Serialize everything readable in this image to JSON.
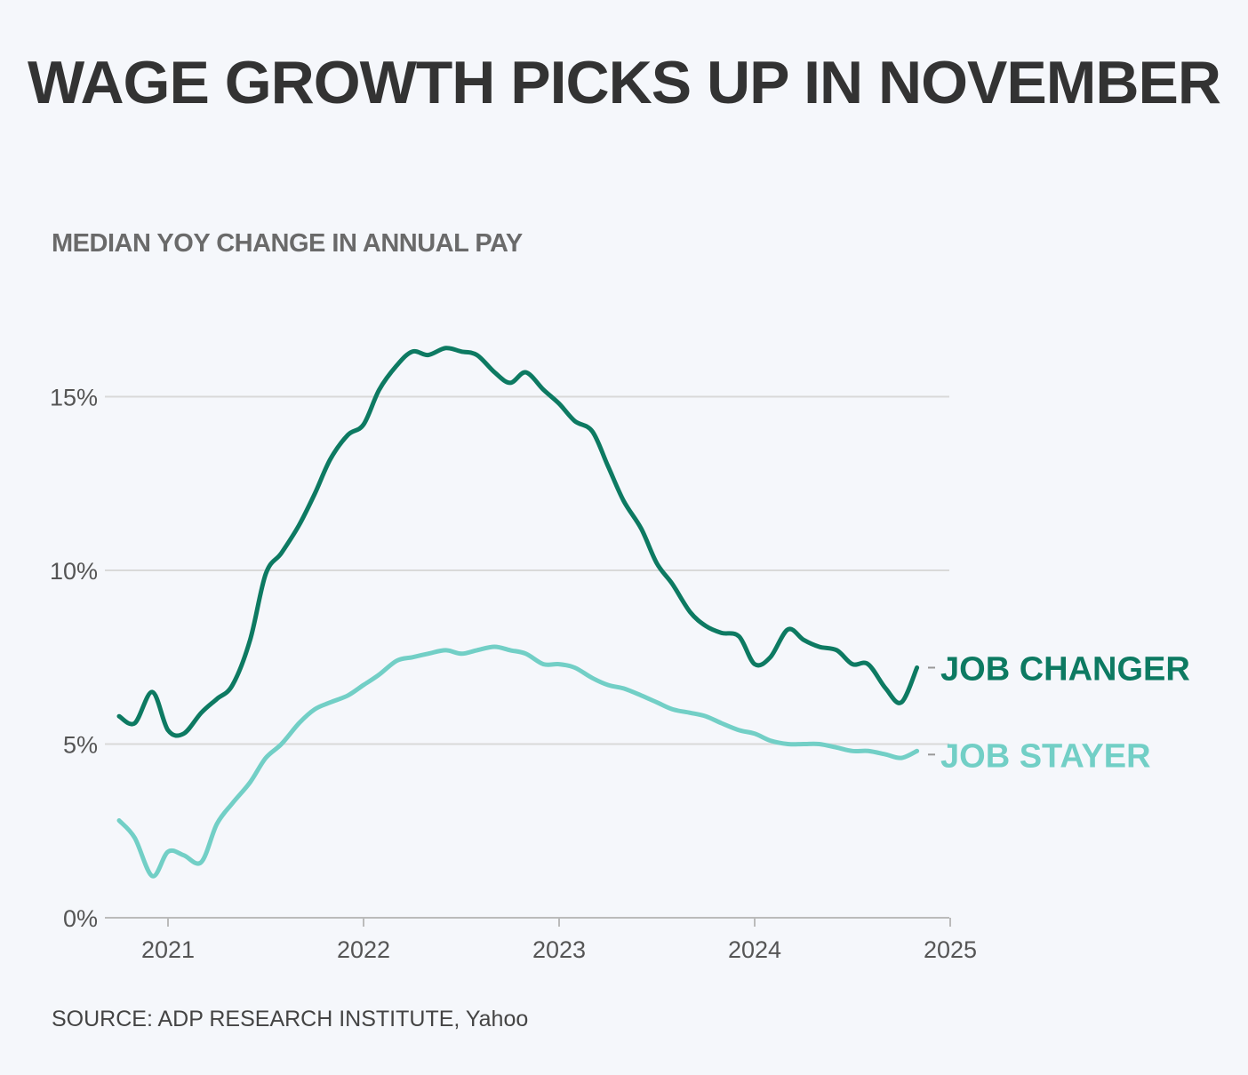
{
  "title": "WAGE GROWTH PICKS UP IN NOVEMBER",
  "subtitle": "MEDIAN YOY CHANGE IN ANNUAL PAY",
  "source": "SOURCE: ADP RESEARCH INSTITUTE, Yahoo",
  "colors": {
    "job_changer": "#0d7a62",
    "job_stayer": "#72cfc6",
    "grid": "#d9d9d9",
    "axis": "#bbbbbb"
  },
  "chart_data": {
    "type": "line",
    "title": "WAGE GROWTH PICKS UP IN NOVEMBER",
    "subtitle": "MEDIAN YOY CHANGE IN ANNUAL PAY",
    "xlim": [
      2020.75,
      2025.0
    ],
    "ylim": [
      0,
      17
    ],
    "x_ticks": [
      2021,
      2022,
      2023,
      2024,
      2025
    ],
    "x_tick_labels": [
      "2021",
      "2022",
      "2023",
      "2024",
      "2025"
    ],
    "y_ticks": [
      0,
      5,
      10,
      15
    ],
    "y_tick_labels": [
      "0%",
      "5%",
      "10%",
      "15%"
    ],
    "grid": true,
    "legend": "direct labels at line ends",
    "series": [
      {
        "name": "JOB CHANGER",
        "color": "#0d7a62",
        "points": [
          [
            2020.75,
            5.8
          ],
          [
            2020.83,
            5.6
          ],
          [
            2020.92,
            6.5
          ],
          [
            2021.0,
            5.4
          ],
          [
            2021.08,
            5.3
          ],
          [
            2021.17,
            5.9
          ],
          [
            2021.25,
            6.3
          ],
          [
            2021.33,
            6.7
          ],
          [
            2021.42,
            8.0
          ],
          [
            2021.5,
            9.9
          ],
          [
            2021.58,
            10.5
          ],
          [
            2021.67,
            11.3
          ],
          [
            2021.75,
            12.2
          ],
          [
            2021.83,
            13.2
          ],
          [
            2021.92,
            13.9
          ],
          [
            2022.0,
            14.2
          ],
          [
            2022.08,
            15.2
          ],
          [
            2022.17,
            15.9
          ],
          [
            2022.25,
            16.3
          ],
          [
            2022.33,
            16.2
          ],
          [
            2022.42,
            16.4
          ],
          [
            2022.5,
            16.3
          ],
          [
            2022.58,
            16.2
          ],
          [
            2022.67,
            15.7
          ],
          [
            2022.75,
            15.4
          ],
          [
            2022.83,
            15.7
          ],
          [
            2022.92,
            15.2
          ],
          [
            2023.0,
            14.8
          ],
          [
            2023.08,
            14.3
          ],
          [
            2023.17,
            14.0
          ],
          [
            2023.25,
            13.0
          ],
          [
            2023.33,
            12.0
          ],
          [
            2023.42,
            11.2
          ],
          [
            2023.5,
            10.2
          ],
          [
            2023.58,
            9.6
          ],
          [
            2023.67,
            8.8
          ],
          [
            2023.75,
            8.4
          ],
          [
            2023.83,
            8.2
          ],
          [
            2023.92,
            8.1
          ],
          [
            2024.0,
            7.3
          ],
          [
            2024.08,
            7.5
          ],
          [
            2024.17,
            8.3
          ],
          [
            2024.25,
            8.0
          ],
          [
            2024.33,
            7.8
          ],
          [
            2024.42,
            7.7
          ],
          [
            2024.5,
            7.3
          ],
          [
            2024.58,
            7.3
          ],
          [
            2024.67,
            6.6
          ],
          [
            2024.75,
            6.2
          ],
          [
            2024.83,
            7.2
          ]
        ]
      },
      {
        "name": "JOB STAYER",
        "color": "#72cfc6",
        "points": [
          [
            2020.75,
            2.8
          ],
          [
            2020.83,
            2.3
          ],
          [
            2020.92,
            1.2
          ],
          [
            2021.0,
            1.9
          ],
          [
            2021.08,
            1.8
          ],
          [
            2021.17,
            1.6
          ],
          [
            2021.25,
            2.7
          ],
          [
            2021.33,
            3.3
          ],
          [
            2021.42,
            3.9
          ],
          [
            2021.5,
            4.6
          ],
          [
            2021.58,
            5.0
          ],
          [
            2021.67,
            5.6
          ],
          [
            2021.75,
            6.0
          ],
          [
            2021.83,
            6.2
          ],
          [
            2021.92,
            6.4
          ],
          [
            2022.0,
            6.7
          ],
          [
            2022.08,
            7.0
          ],
          [
            2022.17,
            7.4
          ],
          [
            2022.25,
            7.5
          ],
          [
            2022.33,
            7.6
          ],
          [
            2022.42,
            7.7
          ],
          [
            2022.5,
            7.6
          ],
          [
            2022.58,
            7.7
          ],
          [
            2022.67,
            7.8
          ],
          [
            2022.75,
            7.7
          ],
          [
            2022.83,
            7.6
          ],
          [
            2022.92,
            7.3
          ],
          [
            2023.0,
            7.3
          ],
          [
            2023.08,
            7.2
          ],
          [
            2023.17,
            6.9
          ],
          [
            2023.25,
            6.7
          ],
          [
            2023.33,
            6.6
          ],
          [
            2023.42,
            6.4
          ],
          [
            2023.5,
            6.2
          ],
          [
            2023.58,
            6.0
          ],
          [
            2023.67,
            5.9
          ],
          [
            2023.75,
            5.8
          ],
          [
            2023.83,
            5.6
          ],
          [
            2023.92,
            5.4
          ],
          [
            2024.0,
            5.3
          ],
          [
            2024.08,
            5.1
          ],
          [
            2024.17,
            5.0
          ],
          [
            2024.25,
            5.0
          ],
          [
            2024.33,
            5.0
          ],
          [
            2024.42,
            4.9
          ],
          [
            2024.5,
            4.8
          ],
          [
            2024.58,
            4.8
          ],
          [
            2024.67,
            4.7
          ],
          [
            2024.75,
            4.6
          ],
          [
            2024.83,
            4.8
          ]
        ]
      }
    ]
  }
}
